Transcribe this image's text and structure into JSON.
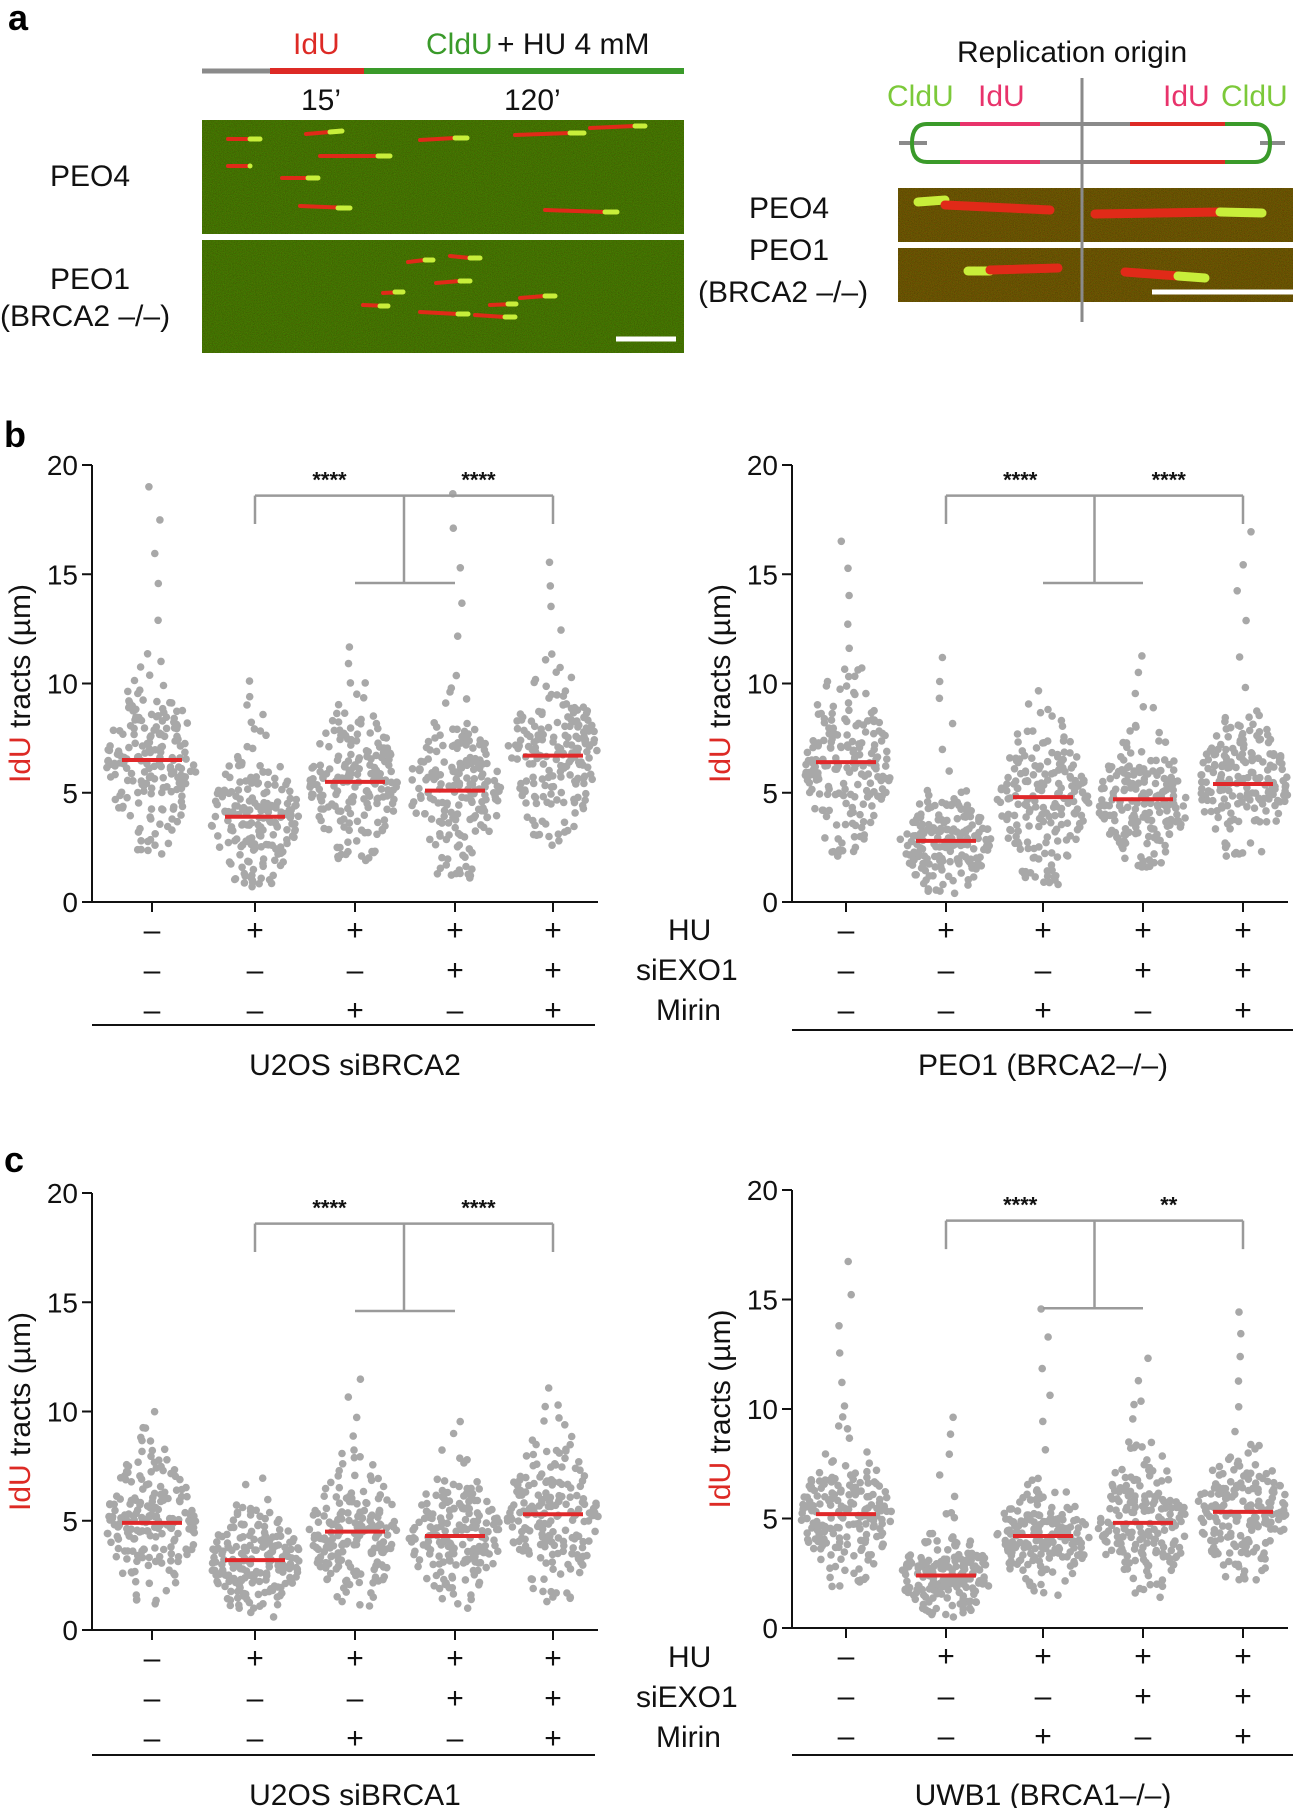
{
  "colors": {
    "idu": "#dd2a25",
    "cldu": "#3a9a2a",
    "cldu_light": "#7cc93a",
    "idu_pink": "#e8336b",
    "dots": "#a8a8a8",
    "median": "#e0282a",
    "bracket": "#9a9a9a"
  },
  "panel_a": {
    "letter": "a",
    "schematic": {
      "idu_label": "IdU",
      "cldu_label": "CldU",
      "hu_label": "+ HU 4 mM",
      "time1": "15’",
      "time2": "120’"
    },
    "row_labels": [
      "PEO4",
      "PEO1",
      "(BRCA2 –/–)"
    ],
    "origin": {
      "title": "Replication origin",
      "left_labels": [
        "CldU",
        "IdU"
      ],
      "right_labels": [
        "IdU",
        "CldU"
      ],
      "row_labels": [
        "PEO4",
        "PEO1",
        "(BRCA2 –/–)"
      ]
    }
  },
  "panel_b_letter": "b",
  "panel_c_letter": "c",
  "condition_labels": {
    "hu": "HU",
    "siexo1": "siEXO1",
    "mirin": "Mirin"
  },
  "conditions": {
    "hu": [
      "–",
      "+",
      "+",
      "+",
      "+"
    ],
    "siexo1": [
      "–",
      "–",
      "–",
      "+",
      "+"
    ],
    "mirin": [
      "–",
      "–",
      "+",
      "–",
      "+"
    ]
  },
  "chart_data": [
    {
      "type": "scatter",
      "panel": "b",
      "title": "U2OS siBRCA2",
      "ylabel_colored": "IdU",
      "ylabel_rest": " tracts (µm)",
      "ylim": [
        0,
        20
      ],
      "yticks": [
        0,
        5,
        10,
        15,
        20
      ],
      "categories": [
        "HU–",
        "HU+",
        "HU+ Mirin",
        "HU+ siEXO1",
        "HU+ siEXO1 Mirin"
      ],
      "medians": [
        6.5,
        3.9,
        5.5,
        5.1,
        6.7
      ],
      "ranges": [
        [
          2.2,
          19.2
        ],
        [
          0.7,
          10.2
        ],
        [
          1.9,
          11.8
        ],
        [
          1.1,
          18.8
        ],
        [
          2.6,
          15.7
        ]
      ],
      "significance": [
        "****",
        "****"
      ]
    },
    {
      "type": "scatter",
      "panel": "b",
      "title": "PEO1 (BRCA2–/–)",
      "ylabel_colored": "IdU",
      "ylabel_rest": " tracts (µm)",
      "ylim": [
        0,
        20
      ],
      "yticks": [
        0,
        5,
        10,
        15,
        20
      ],
      "categories": [
        "HU–",
        "HU+",
        "HU+ Mirin",
        "HU+ siEXO1",
        "HU+ siEXO1 Mirin"
      ],
      "medians": [
        6.4,
        2.8,
        4.8,
        4.7,
        5.4
      ],
      "ranges": [
        [
          2.1,
          16.7
        ],
        [
          0.4,
          11.4
        ],
        [
          0.8,
          9.9
        ],
        [
          1.6,
          11.4
        ],
        [
          2.1,
          17.1
        ]
      ],
      "significance": [
        "****",
        "****"
      ]
    },
    {
      "type": "scatter",
      "panel": "c",
      "title": "U2OS siBRCA1",
      "ylabel_colored": "IdU",
      "ylabel_rest": " tracts (µm)",
      "ylim": [
        0,
        20
      ],
      "yticks": [
        0,
        5,
        10,
        15,
        20
      ],
      "categories": [
        "HU–",
        "HU+",
        "HU+ Mirin",
        "HU+ siEXO1",
        "HU+ siEXO1 Mirin"
      ],
      "medians": [
        4.9,
        3.2,
        4.5,
        4.3,
        5.3
      ],
      "ranges": [
        [
          1.2,
          10.1
        ],
        [
          0.6,
          7.2
        ],
        [
          1.1,
          11.5
        ],
        [
          1.0,
          9.7
        ],
        [
          1.3,
          11.1
        ]
      ],
      "significance": [
        "****",
        "****"
      ]
    },
    {
      "type": "scatter",
      "panel": "c",
      "title": "UWB1 (BRCA1–/–)",
      "ylabel_colored": "IdU",
      "ylabel_rest": " tracts (µm)",
      "ylim": [
        0,
        20
      ],
      "yticks": [
        0,
        5,
        10,
        15,
        20
      ],
      "categories": [
        "HU–",
        "HU+",
        "HU+ Mirin",
        "HU+ siEXO1",
        "HU+ siEXO1 Mirin"
      ],
      "medians": [
        5.2,
        2.4,
        4.2,
        4.8,
        5.3
      ],
      "ranges": [
        [
          1.9,
          16.9
        ],
        [
          0.5,
          9.8
        ],
        [
          1.5,
          14.6
        ],
        [
          1.4,
          12.4
        ],
        [
          2.2,
          14.7
        ]
      ],
      "significance": [
        "****",
        "**"
      ]
    }
  ]
}
